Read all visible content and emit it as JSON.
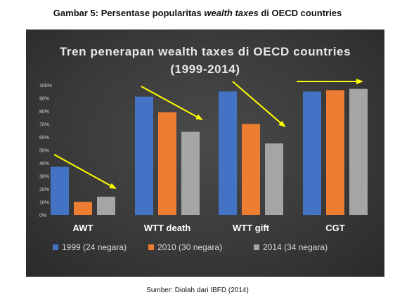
{
  "figure": {
    "caption_prefix": "Gambar 5: Persentase popularitas ",
    "caption_italic": "wealth taxes",
    "caption_suffix": " di OECD countries",
    "source": "Sumber: Diolah dari IBFD (2014)"
  },
  "chart_data": {
    "type": "bar",
    "title_lines": [
      "Tren penerapan wealth taxes di OECD countries",
      "(1999-2014)"
    ],
    "categories": [
      "AWT",
      "WTT death",
      "WTT gift",
      "CGT"
    ],
    "series": [
      {
        "name": "1999 (24 negara)",
        "color": "#4472c4",
        "values": [
          37,
          91,
          95,
          95
        ]
      },
      {
        "name": "2010 (30 negara)",
        "color": "#ed7d31",
        "values": [
          10,
          79,
          70,
          96
        ]
      },
      {
        "name": "2014 (34 negara)",
        "color": "#a5a5a5",
        "values": [
          14,
          64,
          55,
          97
        ]
      }
    ],
    "ylim": [
      0,
      100
    ],
    "yticks": [
      "0%",
      "10%",
      "20%",
      "30%",
      "40%",
      "50%",
      "60%",
      "70%",
      "80%",
      "90%",
      "100%"
    ],
    "grid": false,
    "legend": "bottom",
    "annotations": "yellow trend arrows over each category group",
    "arrow_color": "#ffff00"
  }
}
